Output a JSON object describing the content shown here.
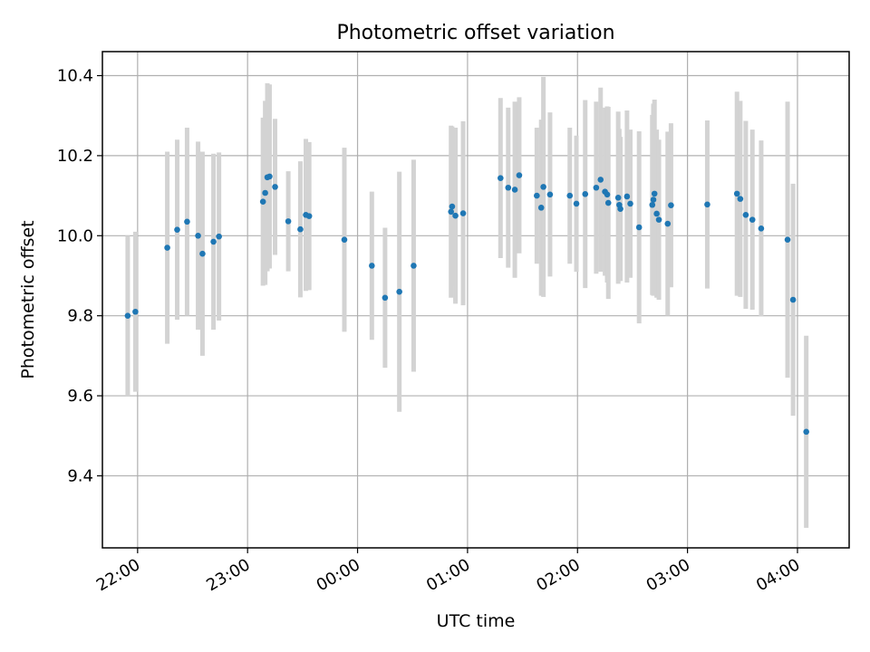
{
  "colors": {
    "point": "#1f77b4",
    "errorbar": "#d3d3d3",
    "grid": "#b0b0b0"
  },
  "chart_data": {
    "type": "scatter",
    "title": "Photometric offset variation",
    "xlabel": "UTC time",
    "ylabel": "Photometric offset",
    "xlim": [
      -2.32,
      4.47
    ],
    "ylim": [
      9.22,
      10.46
    ],
    "grid": true,
    "xtick_values": [
      -2,
      -1,
      0,
      1,
      2,
      3,
      4
    ],
    "xtick_labels": [
      "22:00",
      "23:00",
      "00:00",
      "01:00",
      "02:00",
      "03:00",
      "04:00"
    ],
    "ytick_values": [
      9.4,
      9.6,
      9.8,
      10.0,
      10.2,
      10.4
    ],
    "ytick_labels": [
      "9.4",
      "9.6",
      "9.8",
      "10.0",
      "10.2",
      "10.4"
    ],
    "x_unit_note": "x = hours relative to 00:00 UTC",
    "series": [
      {
        "points": [
          [
            -2.09,
            9.8,
            0.2
          ],
          [
            -2.02,
            9.81,
            0.2
          ],
          [
            -1.73,
            9.97,
            0.24
          ],
          [
            -1.64,
            10.015,
            0.225
          ],
          [
            -1.55,
            10.035,
            0.235
          ],
          [
            -1.45,
            10.0,
            0.235
          ],
          [
            -1.41,
            9.955,
            0.255
          ],
          [
            -1.31,
            9.985,
            0.22
          ],
          [
            -1.26,
            9.998,
            0.21
          ],
          [
            -0.86,
            10.085,
            0.21
          ],
          [
            -0.84,
            10.107,
            0.23
          ],
          [
            -0.82,
            10.146,
            0.235
          ],
          [
            -0.8,
            10.148,
            0.23
          ],
          [
            -0.75,
            10.122,
            0.17
          ],
          [
            -0.63,
            10.036,
            0.125
          ],
          [
            -0.52,
            10.016,
            0.17
          ],
          [
            -0.47,
            10.052,
            0.19
          ],
          [
            -0.44,
            10.049,
            0.185
          ],
          [
            -0.12,
            9.99,
            0.23
          ],
          [
            0.13,
            9.925,
            0.185
          ],
          [
            0.25,
            9.845,
            0.175
          ],
          [
            0.38,
            9.86,
            0.3
          ],
          [
            0.51,
            9.925,
            0.265
          ],
          [
            0.85,
            10.06,
            0.215
          ],
          [
            0.86,
            10.073,
            0.2
          ],
          [
            0.89,
            10.05,
            0.22
          ],
          [
            0.96,
            10.056,
            0.23
          ],
          [
            1.3,
            10.144,
            0.2
          ],
          [
            1.37,
            10.12,
            0.2
          ],
          [
            1.43,
            10.115,
            0.22
          ],
          [
            1.47,
            10.151,
            0.195
          ],
          [
            1.63,
            10.1,
            0.17
          ],
          [
            1.67,
            10.07,
            0.22
          ],
          [
            1.69,
            10.122,
            0.275
          ],
          [
            1.75,
            10.103,
            0.205
          ],
          [
            1.93,
            10.1,
            0.17
          ],
          [
            1.99,
            10.08,
            0.17
          ],
          [
            2.07,
            10.104,
            0.235
          ],
          [
            2.17,
            10.12,
            0.215
          ],
          [
            2.21,
            10.14,
            0.23
          ],
          [
            2.25,
            10.11,
            0.21
          ],
          [
            2.27,
            10.103,
            0.22
          ],
          [
            2.28,
            10.082,
            0.24
          ],
          [
            2.37,
            10.095,
            0.215
          ],
          [
            2.38,
            10.077,
            0.19
          ],
          [
            2.39,
            10.067,
            0.18
          ],
          [
            2.45,
            10.098,
            0.215
          ],
          [
            2.48,
            10.08,
            0.185
          ],
          [
            2.56,
            10.021,
            0.24
          ],
          [
            2.68,
            10.077,
            0.225
          ],
          [
            2.69,
            10.09,
            0.24
          ],
          [
            2.7,
            10.105,
            0.235
          ],
          [
            2.72,
            10.055,
            0.21
          ],
          [
            2.74,
            10.04,
            0.2
          ],
          [
            2.82,
            10.03,
            0.23
          ],
          [
            2.85,
            10.076,
            0.205
          ],
          [
            3.18,
            10.078,
            0.21
          ],
          [
            3.45,
            10.105,
            0.255
          ],
          [
            3.48,
            10.092,
            0.245
          ],
          [
            3.53,
            10.052,
            0.235
          ],
          [
            3.59,
            10.04,
            0.225
          ],
          [
            3.67,
            10.018,
            0.22
          ],
          [
            3.91,
            9.99,
            0.345
          ],
          [
            3.96,
            9.84,
            0.29
          ],
          [
            4.08,
            9.51,
            0.24
          ]
        ]
      }
    ]
  }
}
